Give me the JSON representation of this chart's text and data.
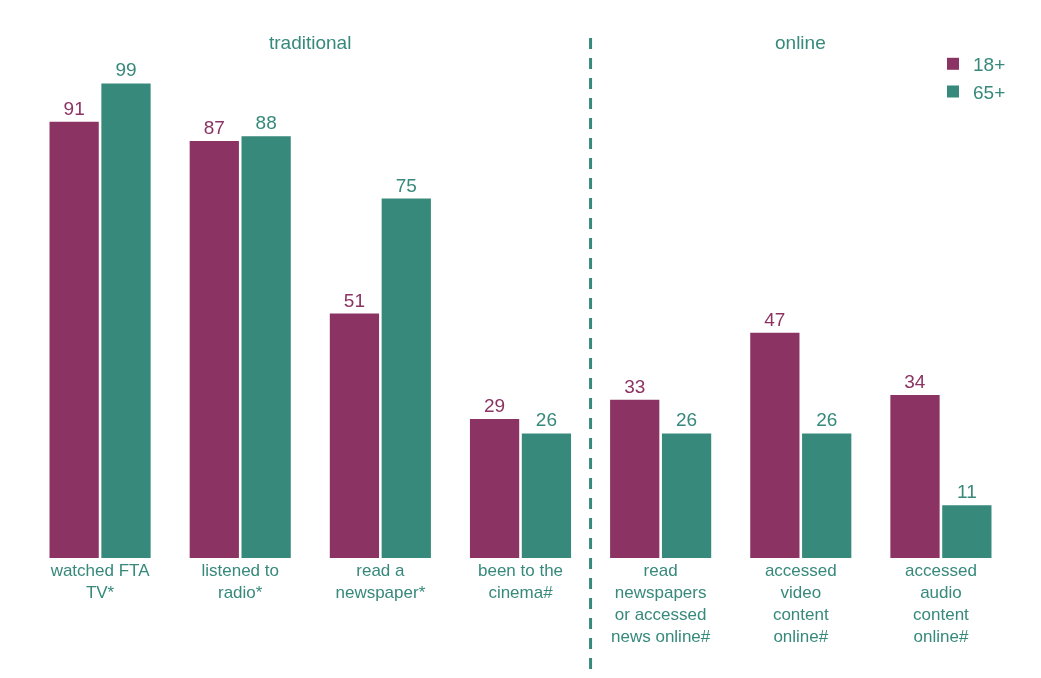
{
  "chart_data": {
    "type": "bar",
    "categories": [
      "watched FTA TV*",
      "listened to radio*",
      "read a newspaper*",
      "been to the cinema#",
      "read newspapers or accessed news online#",
      "accessed video content online#",
      "accessed audio content online#"
    ],
    "series": [
      {
        "name": "18+",
        "color": "#8b3464",
        "values": [
          91,
          87,
          51,
          29,
          33,
          47,
          34
        ]
      },
      {
        "name": "65+",
        "color": "#36897b",
        "values": [
          99,
          88,
          75,
          26,
          26,
          26,
          11
        ]
      }
    ],
    "annotations": [
      "traditional",
      "online"
    ],
    "data_labels": true,
    "grid": false,
    "legend": "top right"
  }
}
